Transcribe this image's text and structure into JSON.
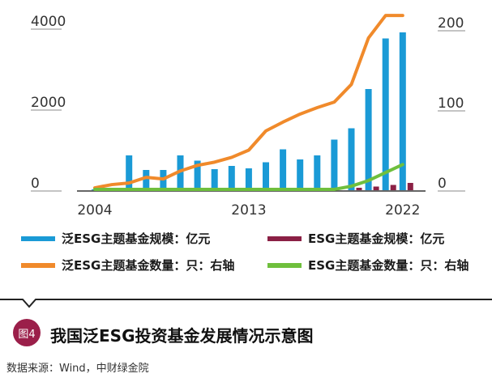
{
  "chart_data": {
    "type": "bar",
    "title": "",
    "x": [
      2004,
      2005,
      2006,
      2007,
      2008,
      2009,
      2010,
      2011,
      2012,
      2013,
      2014,
      2015,
      2016,
      2017,
      2018,
      2019,
      2020,
      2021,
      2022
    ],
    "x_ticks": [
      "2004",
      "2013",
      "2022"
    ],
    "y_left": {
      "ticks": [
        "0",
        "2000",
        "4000"
      ],
      "lim": [
        0,
        4000
      ]
    },
    "y_right": {
      "ticks": [
        "0",
        "100",
        "200"
      ],
      "lim": [
        0,
        220
      ]
    },
    "series": [
      {
        "name": "泛ESG主题基金规模：亿元",
        "type": "bar",
        "axis": "left",
        "color": "#1a9ad6",
        "values": [
          20,
          30,
          860,
          500,
          500,
          860,
          730,
          520,
          600,
          540,
          690,
          1010,
          760,
          860,
          1250,
          1530,
          2500,
          3750,
          3900
        ]
      },
      {
        "name": "ESG主题基金规模：亿元",
        "type": "bar",
        "axis": "left",
        "color": "#8b2045",
        "values": [
          0,
          0,
          0,
          0,
          0,
          0,
          0,
          0,
          0,
          0,
          0,
          0,
          0,
          0,
          0,
          60,
          90,
          130,
          180
        ]
      },
      {
        "name": "泛ESG主题基金数量：只：右轴",
        "type": "line",
        "axis": "right",
        "color": "#f08a2b",
        "values": [
          3,
          7,
          9,
          16,
          14,
          24,
          31,
          35,
          41,
          50,
          74,
          85,
          95,
          103,
          110,
          132,
          190,
          218,
          218
        ]
      },
      {
        "name": "ESG主题基金数量：只：右轴",
        "type": "line",
        "axis": "right",
        "color": "#6fbf3d",
        "values": [
          1,
          1,
          1,
          1,
          1,
          1,
          1,
          1,
          1,
          1,
          1,
          1,
          1,
          1,
          1,
          5,
          12,
          22,
          32
        ]
      }
    ]
  },
  "legend": [
    {
      "label": "泛ESG主题基金规模：亿元",
      "color": "#1a9ad6"
    },
    {
      "label": "ESG主题基金规模：亿元",
      "color": "#8b2045"
    },
    {
      "label": "泛ESG主题基金数量：只：右轴",
      "color": "#f08a2b"
    },
    {
      "label": "ESG主题基金数量：只：右轴",
      "color": "#6fbf3d"
    }
  ],
  "figure": {
    "number": "图4",
    "title": "我国泛ESG投资基金发展情况示意图"
  },
  "source": "数据来源：Wind，中财绿金院"
}
